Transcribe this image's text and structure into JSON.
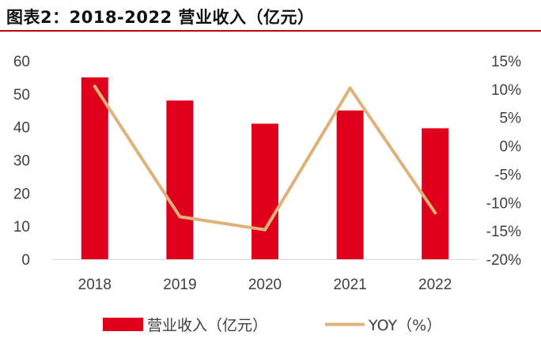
{
  "header": {
    "title": "图表2：2018-2022 营业收入（亿元）"
  },
  "colors": {
    "bar": "#e0001b",
    "line": "#dfb27a",
    "title_rule": "#c00000",
    "axis": "#d9d9d9",
    "text": "#404040"
  },
  "chart_data": {
    "type": "bar",
    "title": "图表2：2018-2022 营业收入（亿元）",
    "categories": [
      "2018",
      "2019",
      "2020",
      "2021",
      "2022"
    ],
    "series": [
      {
        "name": "营业收入（亿元）",
        "type": "bar",
        "axis": "left",
        "values": [
          55,
          48,
          41,
          45,
          39.6
        ]
      },
      {
        "name": "YOY（%）",
        "type": "line",
        "axis": "right",
        "values": [
          10.5,
          -12.5,
          -14.8,
          10.2,
          -11.8
        ]
      }
    ],
    "ylim_left": [
      0,
      60
    ],
    "yticks_left": [
      "0",
      "10",
      "20",
      "30",
      "40",
      "50",
      "60"
    ],
    "ylim_right": [
      -20,
      15
    ],
    "yticks_right": [
      "-20%",
      "-15%",
      "-10%",
      "-5%",
      "0%",
      "5%",
      "10%",
      "15%"
    ],
    "legend_position": "bottom",
    "grid": false
  }
}
